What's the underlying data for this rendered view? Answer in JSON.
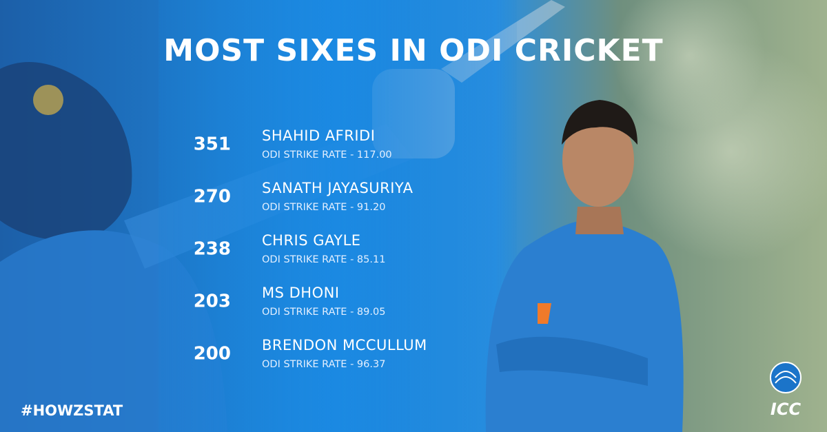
{
  "title": "MOST SIXES IN ODI CRICKET",
  "rows": [
    {
      "sixes": 351,
      "name": "SHAHID AFRIDI",
      "detail": "ODI STRIKE RATE - 117.00"
    },
    {
      "sixes": 270,
      "name": "SANATH JAYASURIYA",
      "detail": "ODI STRIKE RATE - 91.20"
    },
    {
      "sixes": 238,
      "name": "CHRIS GAYLE",
      "detail": "ODI STRIKE RATE - 85.11"
    },
    {
      "sixes": 203,
      "name": "MS DHONI",
      "detail": "ODI STRIKE RATE - 89.05"
    },
    {
      "sixes": 200,
      "name": "BRENDON MCCULLUM",
      "detail": "ODI STRIKE RATE - 96.37"
    }
  ],
  "hashtag": "#HOWZSTAT",
  "logo": "ICC"
}
